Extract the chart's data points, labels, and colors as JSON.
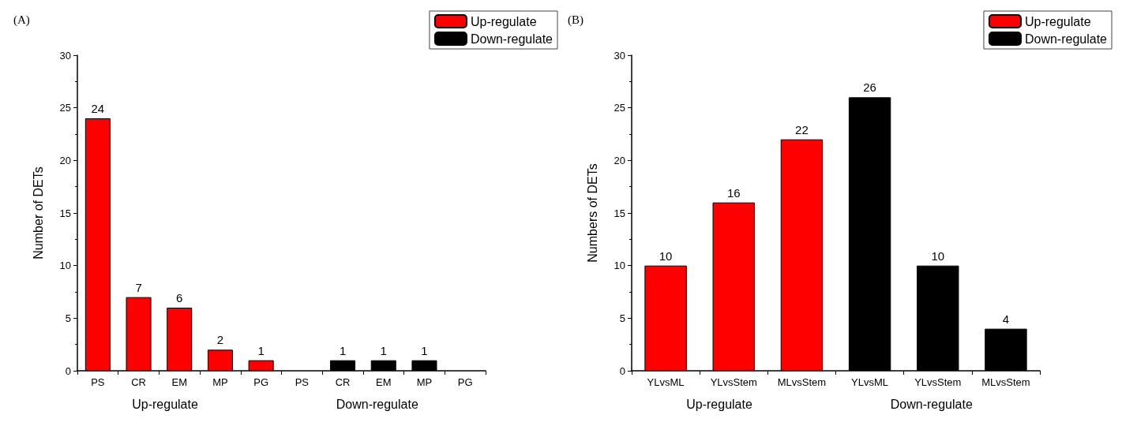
{
  "chart_data": [
    {
      "type": "bar",
      "title": "(A)",
      "ylabel": "Number of DETs",
      "categories": [
        "PS",
        "CR",
        "EM",
        "MP",
        "PG",
        "PS",
        "CR",
        "EM",
        "MP",
        "PG"
      ],
      "series": [
        {
          "name": "Up-regulate",
          "color": "#ff0000",
          "values": [
            24,
            7,
            6,
            2,
            1,
            null,
            null,
            null,
            null,
            null
          ]
        },
        {
          "name": "Down-regulate",
          "color": "#000000",
          "values": [
            null,
            null,
            null,
            null,
            null,
            null,
            1,
            1,
            1,
            null
          ]
        }
      ],
      "stacked": true,
      "ylim": [
        0,
        30
      ],
      "yticks": [
        0,
        5,
        10,
        15,
        20,
        25,
        30
      ],
      "data_labels": true,
      "legend": "top right",
      "annotations": [
        "Up-regulate",
        "Down-regulate"
      ]
    },
    {
      "type": "bar",
      "title": "(B)",
      "ylabel": "Numbers of DETs",
      "categories": [
        "YLvsML",
        "YLvsStem",
        "MLvsStem",
        "YLvsML",
        "YLvsStem",
        "MLvsStem"
      ],
      "series": [
        {
          "name": "Up-regulate",
          "color": "#ff0000",
          "values": [
            10,
            16,
            22,
            null,
            null,
            null
          ]
        },
        {
          "name": "Down-regulate",
          "color": "#000000",
          "values": [
            null,
            null,
            null,
            26,
            10,
            4
          ]
        }
      ],
      "stacked": true,
      "ylim": [
        0,
        30
      ],
      "yticks": [
        0,
        5,
        10,
        15,
        20,
        25,
        30
      ],
      "data_labels": true,
      "legend": "top right",
      "annotations": [
        "Up-regulate",
        "Down-regulate"
      ]
    }
  ]
}
